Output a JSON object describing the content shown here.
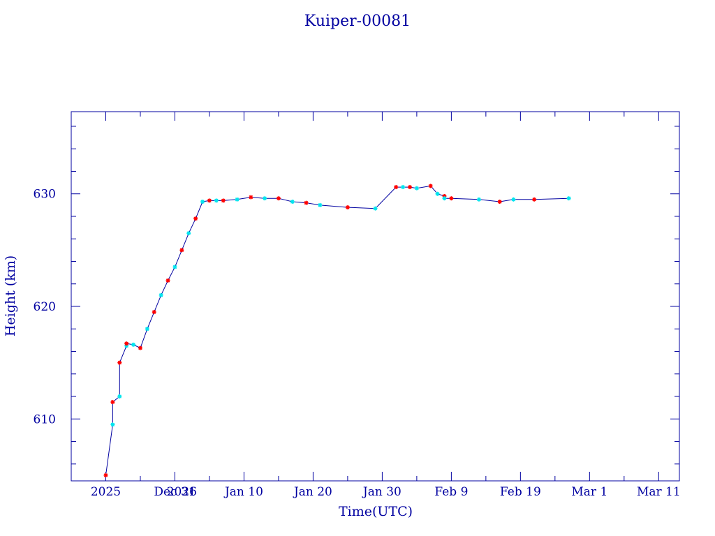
{
  "chart_data": {
    "type": "line",
    "title": "Kuiper-00081",
    "xlabel": "Time(UTC)",
    "ylabel": "Height (km)",
    "ylim": [
      604.5,
      637.3
    ],
    "xlim": [
      "2025-12-16",
      "2026-03-14"
    ],
    "grid": false,
    "x_ticks": [
      {
        "date": "2025-12-21",
        "label": "2025"
      },
      {
        "date": "2025-12-31",
        "label": "Dec 31"
      },
      {
        "date": "2026-01-01",
        "label": "2026"
      },
      {
        "date": "2026-01-10",
        "label": "Jan 10"
      },
      {
        "date": "2026-01-20",
        "label": "Jan 20"
      },
      {
        "date": "2026-01-30",
        "label": "Jan 30"
      },
      {
        "date": "2026-02-09",
        "label": "Feb  9"
      },
      {
        "date": "2026-02-19",
        "label": "Feb 19"
      },
      {
        "date": "2026-03-01",
        "label": "Mar  1"
      },
      {
        "date": "2026-03-11",
        "label": "Mar 11"
      }
    ],
    "y_ticks": [
      610,
      620,
      630
    ],
    "series": [
      {
        "color": "#0000a0",
        "marker_colors": [
          "#ff0000",
          "#00e5ee"
        ],
        "x": [
          "2025-12-21",
          "2025-12-22",
          "2025-12-22",
          "2025-12-23",
          "2025-12-23",
          "2025-12-24",
          "2025-12-24",
          "2025-12-25",
          "2025-12-26",
          "2025-12-27",
          "2025-12-28",
          "2025-12-29",
          "2025-12-30",
          "2025-12-31",
          "2026-01-01",
          "2026-01-02",
          "2026-01-03",
          "2026-01-04",
          "2026-01-05",
          "2026-01-06",
          "2026-01-07",
          "2026-01-09",
          "2026-01-11",
          "2026-01-13",
          "2026-01-15",
          "2026-01-17",
          "2026-01-19",
          "2026-01-21",
          "2026-01-25",
          "2026-01-29",
          "2026-02-01",
          "2026-02-02",
          "2026-02-03",
          "2026-02-04",
          "2026-02-06",
          "2026-02-07",
          "2026-02-08",
          "2026-02-08",
          "2026-02-09",
          "2026-02-13",
          "2026-02-16",
          "2026-02-18",
          "2026-02-21",
          "2026-02-26"
        ],
        "y": [
          605.0,
          609.5,
          611.5,
          612.0,
          615.0,
          616.5,
          616.7,
          616.6,
          616.3,
          618.0,
          619.5,
          621.0,
          622.3,
          623.5,
          625.0,
          626.5,
          627.8,
          629.3,
          629.4,
          629.4,
          629.4,
          629.5,
          629.7,
          629.6,
          629.6,
          629.3,
          629.2,
          629.0,
          628.8,
          628.7,
          630.6,
          630.6,
          630.6,
          630.5,
          630.7,
          630.0,
          629.8,
          629.6,
          629.6,
          629.5,
          629.3,
          629.5,
          629.5,
          629.6
        ]
      }
    ]
  }
}
